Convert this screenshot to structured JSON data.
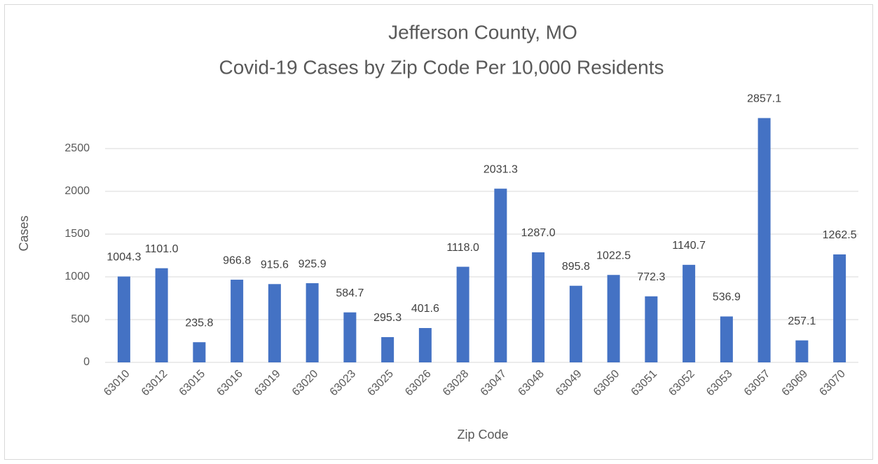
{
  "chart_data": {
    "type": "bar",
    "title": "Jefferson County, MO",
    "subtitle": "Covid-19 Cases by Zip Code Per 10,000 Residents",
    "x_label": "Zip Code",
    "y_label": "Cases",
    "categories": [
      "63010",
      "63012",
      "63015",
      "63016",
      "63019",
      "63020",
      "63023",
      "63025",
      "63026",
      "63028",
      "63047",
      "63048",
      "63049",
      "63050",
      "63051",
      "63052",
      "63053",
      "63057",
      "63069",
      "63070"
    ],
    "values": [
      1004.3,
      1101.0,
      235.8,
      966.8,
      915.6,
      925.9,
      584.7,
      295.3,
      401.6,
      1118.0,
      2031.3,
      1287.0,
      895.8,
      1022.5,
      772.3,
      1140.7,
      536.9,
      2857.1,
      257.1,
      1262.5
    ],
    "value_labels": [
      "1004.3",
      "1101.0",
      "235.8",
      "966.8",
      "915.6",
      "925.9",
      "584.7",
      "295.3",
      "401.6",
      "1118.0",
      "2031.3",
      "1287.0",
      "895.8",
      "1022.5",
      "772.3",
      "1140.7",
      "536.9",
      "2857.1",
      "257.1",
      "1262.5"
    ],
    "color": "#4472c4",
    "ylim": [
      0,
      3000
    ],
    "yticks": [
      0,
      500,
      1000,
      1500,
      2000,
      2500
    ],
    "grid": true
  }
}
